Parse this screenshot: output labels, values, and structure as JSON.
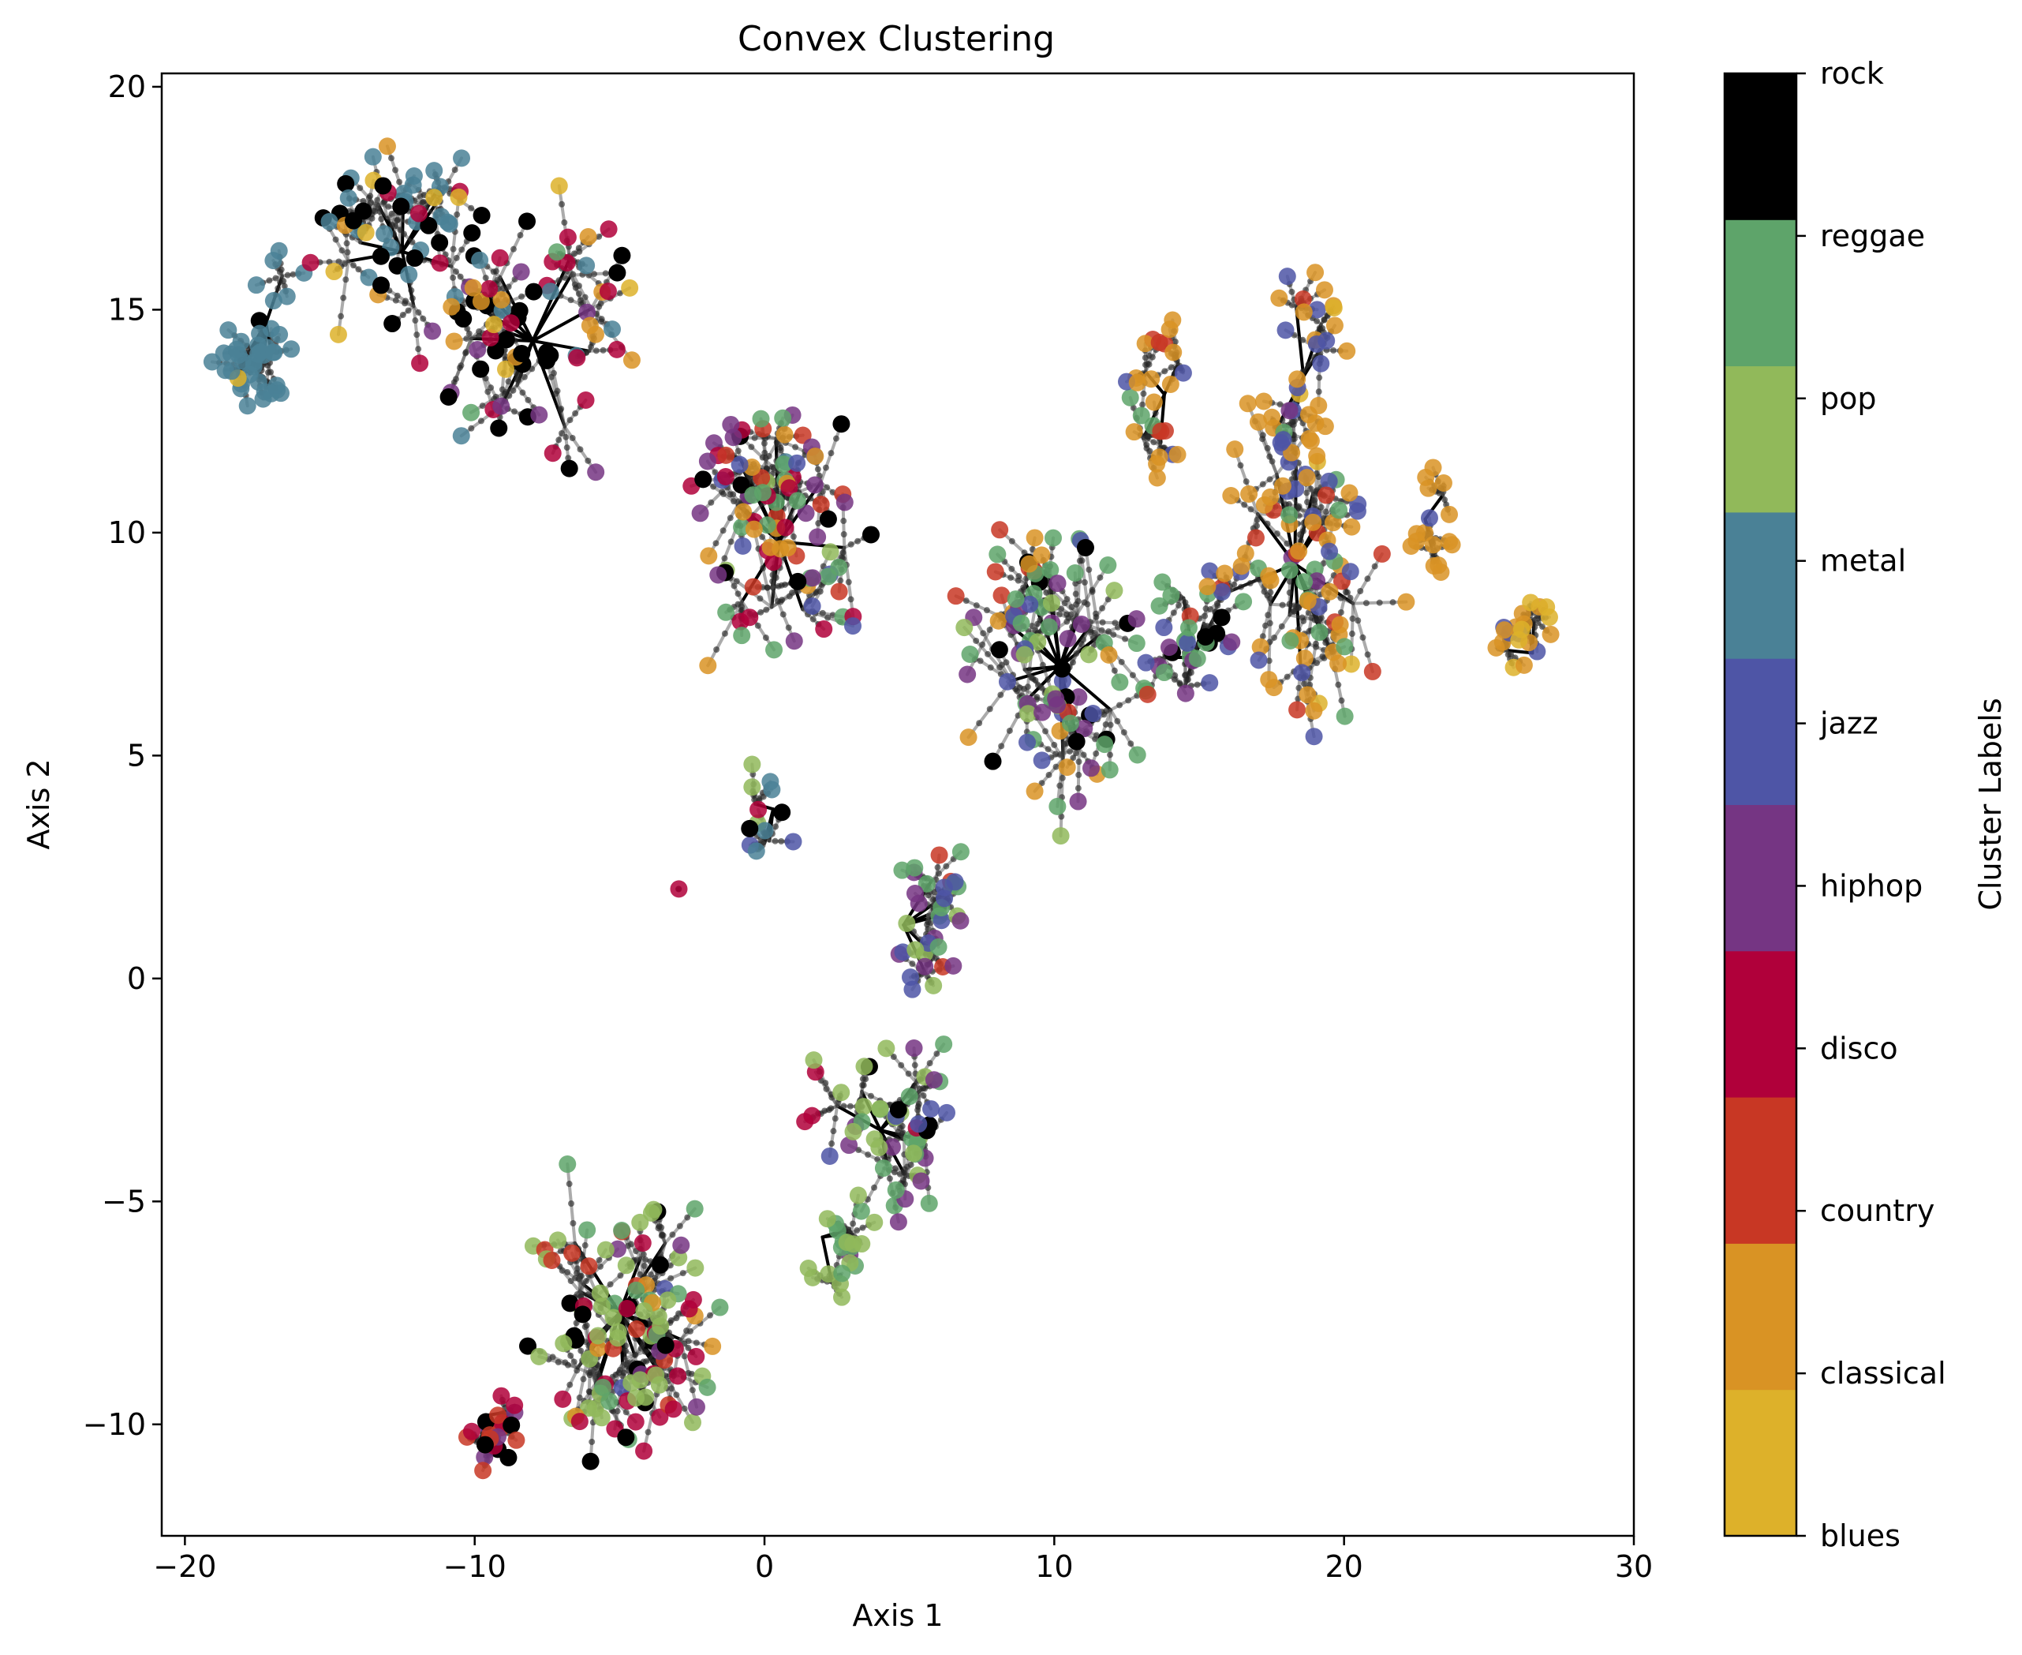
{
  "chart_data": {
    "type": "scatter",
    "title": "Convex Clustering",
    "xlabel": "Axis 1",
    "ylabel": "Axis 2",
    "xlim": [
      -20.8,
      30
    ],
    "ylim": [
      -12.5,
      20.3
    ],
    "xticks": [
      -20,
      -10,
      0,
      10,
      20,
      30
    ],
    "xtick_labels": [
      "−20",
      "−10",
      "0",
      "10",
      "20",
      "30"
    ],
    "yticks": [
      -10,
      -5,
      0,
      5,
      10,
      15,
      20
    ],
    "ytick_labels": [
      "−10",
      "−5",
      "0",
      "5",
      "10",
      "15",
      "20"
    ],
    "grid": false,
    "colorbar": {
      "label": "Cluster Labels",
      "categories": [
        "blues",
        "classical",
        "country",
        "disco",
        "hiphop",
        "jazz",
        "metal",
        "pop",
        "reggae",
        "rock"
      ],
      "colors": [
        "#ddb12a",
        "#d99324",
        "#c83724",
        "#b0003a",
        "#753583",
        "#4e55a6",
        "#4a8196",
        "#91b95a",
        "#5ea46a",
        "#000000"
      ]
    },
    "clusters": [
      {
        "center": [
          -17.2,
          14.7
        ],
        "spread": 1.6,
        "n": 42,
        "mix": {
          "metal": 0.9,
          "blues": 0.05,
          "rock": 0.05
        }
      },
      {
        "center": [
          -12.5,
          16.3
        ],
        "spread": 2.6,
        "n": 55,
        "mix": {
          "metal": 0.4,
          "rock": 0.25,
          "disco": 0.1,
          "blues": 0.1,
          "classical": 0.1,
          "hiphop": 0.05
        }
      },
      {
        "center": [
          -8.0,
          14.3
        ],
        "spread": 2.8,
        "n": 70,
        "mix": {
          "rock": 0.3,
          "disco": 0.2,
          "metal": 0.15,
          "blues": 0.1,
          "classical": 0.1,
          "hiphop": 0.1,
          "reggae": 0.05
        }
      },
      {
        "center": [
          0.5,
          9.8
        ],
        "spread": 3.0,
        "n": 90,
        "mix": {
          "disco": 0.15,
          "hiphop": 0.15,
          "jazz": 0.15,
          "reggae": 0.15,
          "country": 0.1,
          "classical": 0.1,
          "rock": 0.1,
          "metal": 0.05,
          "pop": 0.05
        }
      },
      {
        "center": [
          10.2,
          7.0
        ],
        "spread": 3.2,
        "n": 95,
        "mix": {
          "reggae": 0.3,
          "jazz": 0.15,
          "hiphop": 0.15,
          "country": 0.1,
          "pop": 0.1,
          "classical": 0.1,
          "rock": 0.1
        }
      },
      {
        "center": [
          14.8,
          7.2
        ],
        "spread": 1.8,
        "n": 30,
        "mix": {
          "reggae": 0.3,
          "jazz": 0.2,
          "hiphop": 0.2,
          "rock": 0.15,
          "country": 0.15
        }
      },
      {
        "center": [
          18.3,
          9.3
        ],
        "spread": 3.0,
        "n": 90,
        "mix": {
          "classical": 0.45,
          "blues": 0.1,
          "jazz": 0.2,
          "country": 0.1,
          "reggae": 0.1,
          "hiphop": 0.05
        }
      },
      {
        "center": [
          18.6,
          13.5
        ],
        "spread": 2.0,
        "n": 30,
        "mix": {
          "classical": 0.5,
          "jazz": 0.35,
          "country": 0.1,
          "blues": 0.05
        }
      },
      {
        "center": [
          13.8,
          13.1
        ],
        "spread": 1.6,
        "n": 26,
        "mix": {
          "classical": 0.55,
          "reggae": 0.15,
          "country": 0.15,
          "jazz": 0.15
        }
      },
      {
        "center": [
          26.5,
          7.3
        ],
        "spread": 1.2,
        "n": 20,
        "mix": {
          "classical": 0.55,
          "blues": 0.35,
          "jazz": 0.1
        }
      },
      {
        "center": [
          22.8,
          10.3
        ],
        "spread": 1.2,
        "n": 16,
        "mix": {
          "classical": 0.9,
          "jazz": 0.1
        }
      },
      {
        "center": [
          0.3,
          3.8
        ],
        "spread": 1.4,
        "n": 12,
        "mix": {
          "pop": 0.3,
          "metal": 0.2,
          "jazz": 0.2,
          "disco": 0.15,
          "rock": 0.15
        }
      },
      {
        "center": [
          4.8,
          1.2
        ],
        "spread": 2.0,
        "n": 34,
        "mix": {
          "reggae": 0.25,
          "jazz": 0.2,
          "hiphop": 0.2,
          "pop": 0.15,
          "country": 0.1,
          "disco": 0.1
        }
      },
      {
        "center": [
          4.0,
          -3.4
        ],
        "spread": 2.2,
        "n": 50,
        "mix": {
          "pop": 0.35,
          "hiphop": 0.25,
          "reggae": 0.2,
          "jazz": 0.1,
          "rock": 0.05,
          "disco": 0.05
        }
      },
      {
        "center": [
          2.0,
          -5.8
        ],
        "spread": 1.4,
        "n": 20,
        "mix": {
          "pop": 0.5,
          "reggae": 0.3,
          "hiphop": 0.2
        }
      },
      {
        "center": [
          -5.0,
          -7.5
        ],
        "spread": 2.8,
        "n": 110,
        "mix": {
          "pop": 0.35,
          "reggae": 0.1,
          "disco": 0.15,
          "hiphop": 0.1,
          "jazz": 0.05,
          "country": 0.1,
          "rock": 0.1,
          "classical": 0.05
        }
      },
      {
        "center": [
          -9.6,
          -9.8
        ],
        "spread": 1.2,
        "n": 22,
        "mix": {
          "rock": 0.3,
          "disco": 0.3,
          "hiphop": 0.2,
          "country": 0.2
        }
      },
      {
        "center": [
          -3.0,
          2.0
        ],
        "spread": 0.05,
        "n": 1,
        "mix": {
          "disco": 1.0
        }
      }
    ]
  }
}
